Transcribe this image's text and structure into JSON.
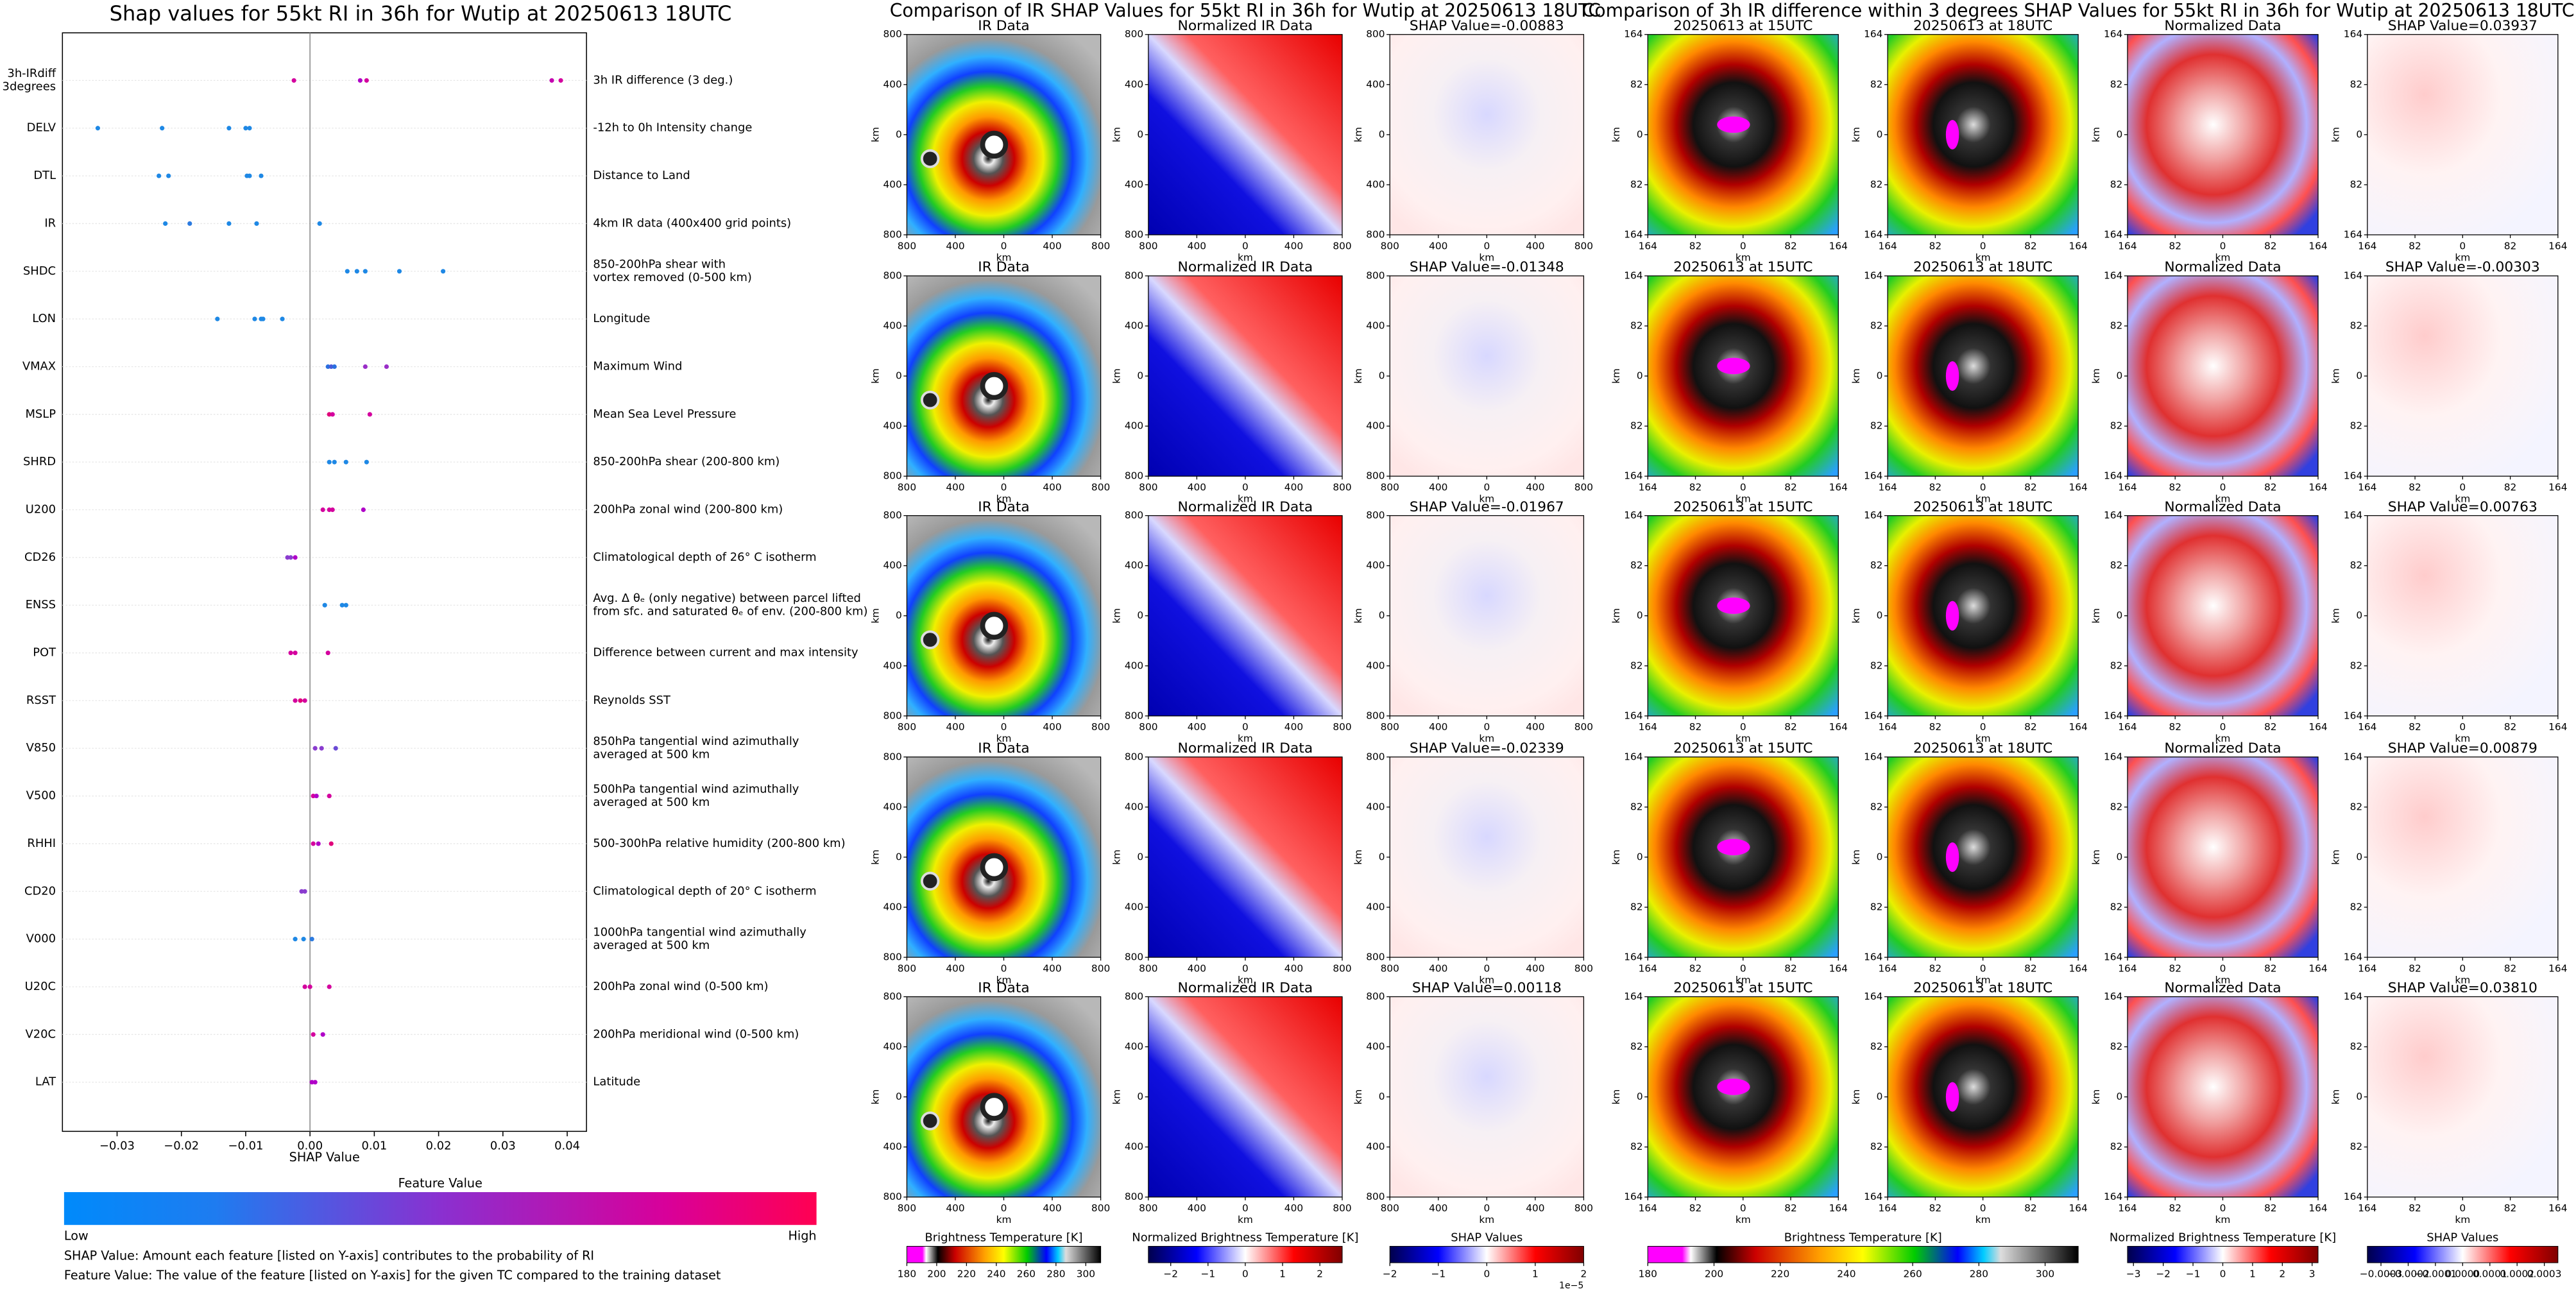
{
  "chart_data": [
    {
      "type": "scatter",
      "title": "Shap values for 55kt RI in 36h for Wutip at 20250613 18UTC",
      "xlabel": "SHAP Value",
      "xlim": [
        -0.0385,
        0.043
      ],
      "xticks": [
        {
          "value": -0.03,
          "label": "−0.03"
        },
        {
          "value": -0.02,
          "label": "−0.02"
        },
        {
          "value": -0.01,
          "label": "−0.01"
        },
        {
          "value": 0,
          "label": "0.00"
        },
        0.01,
        0.02,
        0.03,
        0.04
      ],
      "categories": [
        "3h-IRdiff\n3degrees",
        "DELV",
        "DTL",
        "IR",
        "SHDC",
        "LON",
        "VMAX",
        "MSLP",
        "SHRD",
        "U200",
        "CD26",
        "ENSS",
        "POT",
        "RSST",
        "V850",
        "V500",
        "RHHI",
        "CD20",
        "V000",
        "U20C",
        "V20C",
        "LAT"
      ],
      "descriptions": [
        "3h IR difference (3 deg.)",
        "-12h to 0h Intensity change",
        "Distance to Land",
        "4km IR data (400x400 grid points)",
        "850-200hPa shear with\nvortex removed (0-500 km)",
        "Longitude",
        "Maximum Wind",
        "Mean Sea Level Pressure",
        "850-200hPa shear (200-800 km)",
        "200hPa zonal wind (200-800 km)",
        "Climatological depth of 26° C isotherm",
        "Avg. Δ θₑ (only negative) between parcel lifted\nfrom sfc. and saturated θₑ of env. (200-800 km)",
        "Difference between current and max intensity",
        "Reynolds SST",
        "850hPa tangential wind azimuthally\naveraged at 500 km",
        "500hPa tangential wind azimuthally\naveraged at 500 km",
        "500-300hPa relative humidity (200-800 km)",
        "Climatological depth of 20° C isotherm",
        "1000hPa tangential wind azimuthally\naveraged at 500 km",
        "200hPa zonal wind (0-500 km)",
        "200hPa meridional wind (0-500 km)",
        "Latitude"
      ],
      "series": [
        {
          "values": [
            -0.0025,
            0.0078,
            0.0088,
            0.0376,
            0.039
          ],
          "colors": [
            "#d4009e",
            "#b000c8",
            "#d4009e",
            "#c400b0",
            "#d4009e"
          ]
        },
        {
          "values": [
            -0.033,
            -0.023,
            -0.0126,
            -0.01,
            -0.0094
          ],
          "colors": [
            "#1e88e5",
            "#1e88e5",
            "#1e88e5",
            "#1e88e5",
            "#1e88e5"
          ]
        },
        {
          "values": [
            -0.0235,
            -0.022,
            -0.0098,
            -0.0094,
            -0.0076
          ],
          "colors": [
            "#1e88e5",
            "#1e88e5",
            "#1e88e5",
            "#1e88e5",
            "#1e88e5"
          ]
        },
        {
          "values": [
            -0.0225,
            -0.0187,
            -0.0126,
            -0.0083,
            0.0015
          ],
          "colors": [
            "#1e88e5",
            "#2c7be0",
            "#1e88e5",
            "#1e88e5",
            "#1e88e5"
          ]
        },
        {
          "values": [
            0.0058,
            0.0073,
            0.0086,
            0.0139,
            0.0207
          ],
          "colors": [
            "#1e88e5",
            "#1e88e5",
            "#1e88e5",
            "#1e88e5",
            "#1e88e5"
          ]
        },
        {
          "values": [
            -0.0144,
            -0.0086,
            -0.0076,
            -0.0073,
            -0.0043
          ],
          "colors": [
            "#1e88e5",
            "#1e88e5",
            "#1e88e5",
            "#1e88e5",
            "#1e88e5"
          ]
        },
        {
          "values": [
            0.0028,
            0.0033,
            0.0038,
            0.0086,
            0.0119
          ],
          "colors": [
            "#2a6fe0",
            "#4a5ad8",
            "#2a6fe0",
            "#9a2ec8",
            "#9a2ec8"
          ]
        },
        {
          "values": [
            0.003,
            0.0035,
            0.0093
          ],
          "colors": [
            "#e0007a",
            "#d4009e",
            "#d4009e"
          ]
        },
        {
          "values": [
            0.003,
            0.0038,
            0.0056,
            0.0088
          ],
          "colors": [
            "#1e88e5",
            "#1e88e5",
            "#1e88e5",
            "#1e88e5"
          ]
        },
        {
          "values": [
            0.002,
            0.003,
            0.0035,
            0.0083
          ],
          "colors": [
            "#d4009e",
            "#d4009e",
            "#d4009e",
            "#b000c8"
          ]
        },
        {
          "values": [
            -0.0035,
            -0.003,
            -0.0023
          ],
          "colors": [
            "#8a3ccf",
            "#8a3ccf",
            "#b000c8"
          ]
        },
        {
          "values": [
            0.0023,
            0.005,
            0.0056
          ],
          "colors": [
            "#1e88e5",
            "#1e88e5",
            "#1e88e5"
          ]
        },
        {
          "values": [
            -0.003,
            -0.0023,
            0.0028
          ],
          "colors": [
            "#d4009e",
            "#d4009e",
            "#d4009e"
          ]
        },
        {
          "values": [
            -0.0023,
            -0.0015,
            -0.0008
          ],
          "colors": [
            "#d4009e",
            "#e0007a",
            "#d4009e"
          ]
        },
        {
          "values": [
            0.0008,
            0.0018,
            0.004
          ],
          "colors": [
            "#8a3ccf",
            "#8a3ccf",
            "#6a4ad5"
          ]
        },
        {
          "values": [
            0.0005,
            0.001,
            0.003
          ],
          "colors": [
            "#d4009e",
            "#b000c8",
            "#d4009e"
          ]
        },
        {
          "values": [
            0.0005,
            0.0013,
            0.0033
          ],
          "colors": [
            "#d4009e",
            "#b000c8",
            "#e0007a"
          ]
        },
        {
          "values": [
            -0.0013,
            -0.0008
          ],
          "colors": [
            "#8a3ccf",
            "#8a3ccf"
          ]
        },
        {
          "values": [
            -0.0023,
            -0.001,
            0.0003
          ],
          "colors": [
            "#1e88e5",
            "#1e88e5",
            "#2c7be0"
          ]
        },
        {
          "values": [
            -0.0008,
            0,
            0.003
          ],
          "colors": [
            "#d4009e",
            "#d4009e",
            "#d4009e"
          ]
        },
        {
          "values": [
            0.0005,
            0.002
          ],
          "colors": [
            "#d4009e",
            "#b000c8"
          ]
        },
        {
          "values": [
            0.0003,
            0.0008
          ],
          "colors": [
            "#b000c8",
            "#b000c8"
          ]
        }
      ],
      "colorbar": {
        "title": "Feature Value",
        "low": "Low",
        "high": "High"
      },
      "notes": [
        "SHAP Value: Amount each feature [listed on Y-axis] contributes to the probability of RI",
        "Feature Value: The value of the feature [listed on Y-axis] for the given TC compared to the training dataset"
      ]
    },
    {
      "type": "image_grid",
      "title": "Comparison of IR SHAP Values for 55kt RI in 36h for Wutip at 20250613 18UTC",
      "panel_titles": [
        [
          "IR Data",
          "Normalized IR Data",
          "SHAP Value=-0.00883"
        ],
        [
          "IR Data",
          "Normalized IR Data",
          "SHAP Value=-0.01348"
        ],
        [
          "IR Data",
          "Normalized IR Data",
          "SHAP Value=-0.01967"
        ],
        [
          "IR Data",
          "Normalized IR Data",
          "SHAP Value=-0.02339"
        ],
        [
          "IR Data",
          "Normalized IR Data",
          "SHAP Value=0.00118"
        ]
      ],
      "xlabel": "km",
      "ylabel": "km",
      "xtick_labels": [
        "800",
        "400",
        "0",
        "400",
        "800"
      ],
      "ytick_labels": [
        "800",
        "400",
        "0",
        "400",
        "800"
      ],
      "colorbars": [
        {
          "label": "Brightness Temperature [K]",
          "lim": [
            180,
            310
          ],
          "ticks": [
            180,
            200,
            220,
            240,
            260,
            280,
            300
          ]
        },
        {
          "label": "Normalized Brightness Temperature [K]",
          "lim": [
            -2.6,
            2.6
          ],
          "ticks": [
            {
              "value": -2,
              "label": "−2"
            },
            {
              "value": -1,
              "label": "−1"
            },
            0,
            1,
            2
          ]
        },
        {
          "label": "SHAP Values",
          "lim": [
            -2,
            2
          ],
          "ticks": [
            {
              "value": -2,
              "label": "−2"
            },
            {
              "value": -1,
              "label": "−1"
            },
            0,
            1,
            2
          ],
          "offset_label": "1e−5"
        }
      ]
    },
    {
      "type": "image_grid",
      "title": "Comparison of 3h IR difference within 3 degrees SHAP Values for 55kt RI in 36h for Wutip at 20250613 18UTC",
      "panel_titles": [
        [
          "20250613 at 15UTC",
          "20250613 at 18UTC",
          "Normalized Data",
          "SHAP Value=0.03937"
        ],
        [
          "20250613 at 15UTC",
          "20250613 at 18UTC",
          "Normalized Data",
          "SHAP Value=-0.00303"
        ],
        [
          "20250613 at 15UTC",
          "20250613 at 18UTC",
          "Normalized Data",
          "SHAP Value=0.00763"
        ],
        [
          "20250613 at 15UTC",
          "20250613 at 18UTC",
          "Normalized Data",
          "SHAP Value=0.00879"
        ],
        [
          "20250613 at 15UTC",
          "20250613 at 18UTC",
          "Normalized Data",
          "SHAP Value=0.03810"
        ]
      ],
      "xlabel": "km",
      "ylabel": "km",
      "xtick_labels": [
        "164",
        "82",
        "0",
        "82",
        "164"
      ],
      "ytick_labels": [
        "164",
        "82",
        "0",
        "82",
        "164"
      ],
      "colorbars": [
        {
          "label": "Brightness Temperature [K]",
          "lim": [
            180,
            310
          ],
          "ticks": [
            180,
            200,
            220,
            240,
            260,
            280,
            300
          ]
        },
        {
          "label": "Normalized Brightness Temperature [K]",
          "lim": [
            -3.2,
            3.2
          ],
          "ticks": [
            {
              "value": -3,
              "label": "−3"
            },
            {
              "value": -2,
              "label": "−2"
            },
            {
              "value": -1,
              "label": "−1"
            },
            0,
            1,
            2,
            3
          ]
        },
        {
          "label": "SHAP Values",
          "lim": [
            -0.00035,
            0.00035
          ],
          "ticks": [
            {
              "value": -0.0003,
              "label": "−0.0003"
            },
            {
              "value": -0.0002,
              "label": "−0.0002"
            },
            {
              "value": -0.0001,
              "label": "−0.0001"
            },
            {
              "value": 0,
              "label": "0.0000"
            },
            0.0001,
            0.0002,
            0.0003
          ]
        }
      ]
    }
  ]
}
